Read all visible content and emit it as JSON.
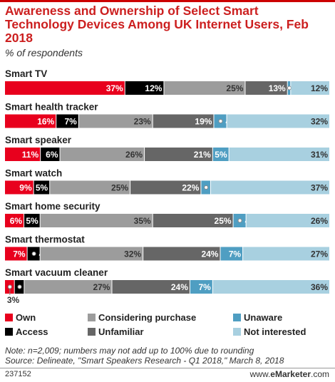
{
  "title": "Awareness and Ownership of Select Smart Technology Devices Among UK Internet Users, Feb 2018",
  "subtitle": "% of respondents",
  "note_line1": "Note: n=2,009; numbers may not add up to 100% due to rounding",
  "note_line2": "Source: Delineate, \"Smart Speakers Research - Q1 2018,\" March 8, 2018",
  "footer_id": "237152",
  "footer_brand_prefix": "www.",
  "footer_brand_name": "eMarketer",
  "footer_brand_suffix": ".com",
  "colors": {
    "Own": "#e8001d",
    "Access": "#000000",
    "Considering purchase": "#9c9c9c",
    "Unfamiliar": "#666666",
    "Unaware": "#4f9ec2",
    "Not interested": "#a8d0e0"
  },
  "legend": [
    {
      "label": "Own",
      "color": "#e8001d"
    },
    {
      "label": "Access",
      "color": "#000000"
    },
    {
      "label": "Considering purchase",
      "color": "#9c9c9c"
    },
    {
      "label": "Unfamiliar",
      "color": "#666666"
    },
    {
      "label": "Unaware",
      "color": "#4f9ec2"
    },
    {
      "label": "Not interested",
      "color": "#a8d0e0"
    }
  ],
  "chart_data": {
    "type": "bar",
    "orientation": "horizontal-stacked-100",
    "title": "Awareness and Ownership of Select Smart Technology Devices Among UK Internet Users, Feb 2018",
    "subtitle": "% of respondents",
    "categories": [
      "Smart TV",
      "Smart health tracker",
      "Smart speaker",
      "Smart watch",
      "Smart home security",
      "Smart thermostat",
      "Smart vacuum cleaner"
    ],
    "series": [
      {
        "name": "Own",
        "values": [
          37,
          16,
          11,
          9,
          6,
          7,
          3
        ]
      },
      {
        "name": "Access",
        "values": [
          12,
          7,
          6,
          5,
          5,
          4,
          3
        ]
      },
      {
        "name": "Considering purchase",
        "values": [
          25,
          23,
          26,
          25,
          35,
          32,
          27
        ]
      },
      {
        "name": "Unfamiliar",
        "values": [
          13,
          19,
          21,
          22,
          25,
          24,
          24
        ]
      },
      {
        "name": "Unaware",
        "values": [
          1,
          4,
          5,
          3,
          4,
          7,
          7
        ]
      },
      {
        "name": "Not interested",
        "values": [
          12,
          32,
          31,
          37,
          26,
          27,
          36
        ]
      }
    ],
    "value_suffix": "%",
    "legend_position": "bottom"
  }
}
